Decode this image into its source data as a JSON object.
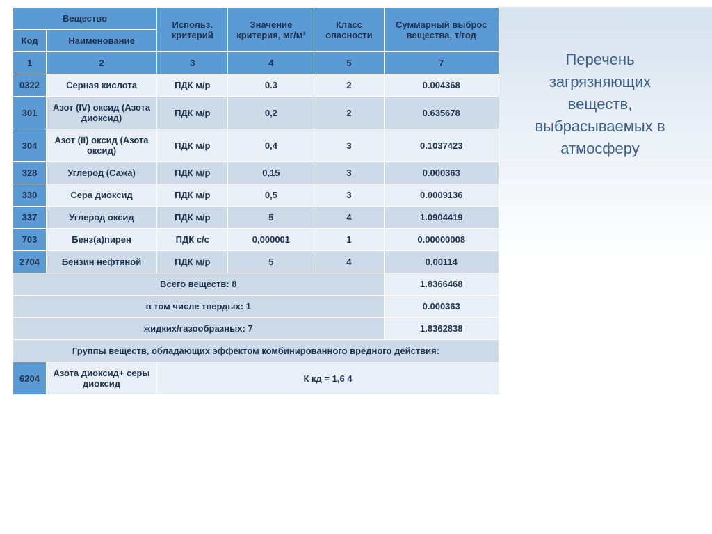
{
  "colors": {
    "header_bg": "#5b9bd5",
    "row_light": "#e8eff7",
    "row_dark": "#cddbe9",
    "text": "#1f3250",
    "side_title": "#3a5f8a"
  },
  "headers": {
    "substance": "Вещество",
    "code": "Код",
    "name": "Наименование",
    "criterion": "Использ. критерий",
    "value": "Значение критерия, мг/м³",
    "hazard": "Класс опасности",
    "emission": "Суммарный выброс вещества, т/год"
  },
  "numrow": [
    "1",
    "2",
    "3",
    "4",
    "5",
    "7"
  ],
  "rows": [
    {
      "code": "0322",
      "name": "Серная кислота",
      "crit": "ПДК м/р",
      "val": "0.3",
      "haz": "2",
      "em": "0.004368",
      "shade": "light"
    },
    {
      "code": "301",
      "name": "Азот (IV) оксид (Азота диоксид)",
      "crit": "ПДК м/р",
      "val": "0,2",
      "haz": "2",
      "em": "0.635678",
      "shade": "dark"
    },
    {
      "code": "304",
      "name": "Азот (II) оксид (Азота оксид)",
      "crit": "ПДК м/р",
      "val": "0,4",
      "haz": "3",
      "em": "0.1037423",
      "shade": "light"
    },
    {
      "code": "328",
      "name": "Углерод (Сажа)",
      "crit": "ПДК м/р",
      "val": "0,15",
      "haz": "3",
      "em": "0.000363",
      "shade": "dark"
    },
    {
      "code": "330",
      "name": "Сера диоксид",
      "crit": "ПДК м/р",
      "val": "0,5",
      "haz": "3",
      "em": "0.0009136",
      "shade": "light"
    },
    {
      "code": "337",
      "name": "Углерод оксид",
      "crit": "ПДК м/р",
      "val": "5",
      "haz": "4",
      "em": "1.0904419",
      "shade": "dark"
    },
    {
      "code": "703",
      "name": "Бенз(а)пирен",
      "crit": "ПДК с/с",
      "val": "0,000001",
      "haz": "1",
      "em": "0.00000008",
      "shade": "light"
    },
    {
      "code": "2704",
      "name": "Бензин нефтяной",
      "crit": "ПДК м/р",
      "val": "5",
      "haz": "4",
      "em": "0.00114",
      "shade": "dark"
    }
  ],
  "summary": [
    {
      "label": "Всего веществ: 8",
      "val": "1.8366468"
    },
    {
      "label": "в том числе твердых: 1",
      "val": "0.000363"
    },
    {
      "label": "жидких/газообразных: 7",
      "val": "1.8362838"
    }
  ],
  "group": {
    "header": "Группы веществ, обладающих эффектом комбинированного вредного действия:",
    "code": "6204",
    "name": "Азота диоксид+ серы диоксид",
    "note": "К кд = 1,6 4"
  },
  "side_title": "Перечень загрязняющих веществ, выбрасываемых в атмосферу"
}
